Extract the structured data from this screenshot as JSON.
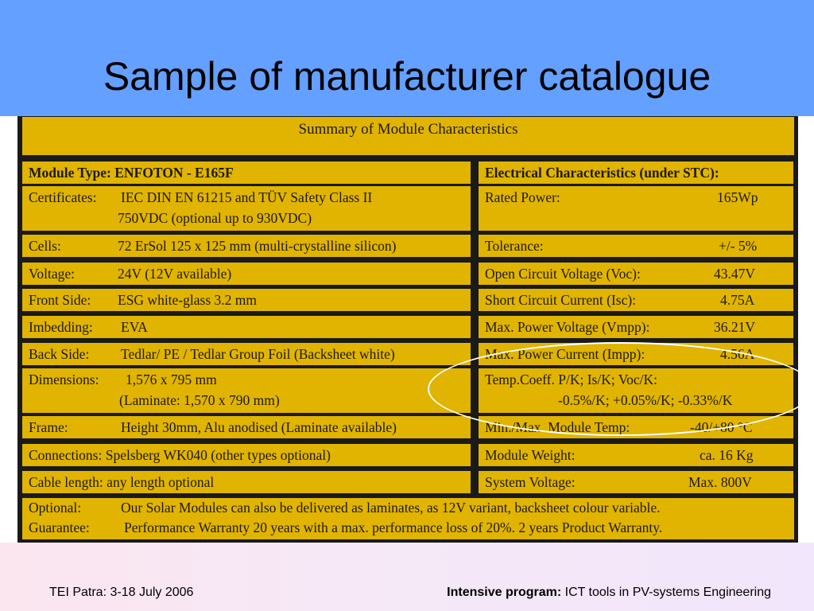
{
  "slide": {
    "title": "Sample of manufacturer catalogue"
  },
  "table": {
    "header": "Summary of Module Characteristics",
    "left": {
      "heading": "Module Type: ENFOTON - E165F",
      "certificates_label": "Certificates:",
      "certificates_line1": "IEC DIN EN 61215 and TÜV Safety Class II",
      "certificates_line2": "750VDC (optional up to 930VDC)",
      "cells_label": "Cells:",
      "cells_value": "72 ErSol 125 x 125 mm (multi-crystalline silicon)",
      "voltage_label": "Voltage:",
      "voltage_value": "24V (12V available)",
      "front_label": "Front Side:",
      "front_value": "ESG white-glass 3.2 mm",
      "imbedding_label": "Imbedding:",
      "imbedding_value": "EVA",
      "back_label": "Back Side:",
      "back_value": "Tedlar/ PE / Tedlar Group Foil (Backsheet white)",
      "dimensions_label": "Dimensions:",
      "dimensions_line1": "1,576 x 795 mm",
      "dimensions_line2": "(Laminate: 1,570 x 790 mm)",
      "frame_label": "Frame:",
      "frame_value": "Height 30mm, Alu anodised (Laminate available)",
      "connections": "Connections: Spelsberg WK040 (other types optional)",
      "cable": "Cable length: any length optional"
    },
    "right": {
      "heading": "Electrical Characteristics (under STC):",
      "rated_label": "Rated Power:",
      "rated_value": "165Wp",
      "tolerance_label": "Tolerance:",
      "tolerance_value": "+/- 5%",
      "voc_label": "Open Circuit Voltage (Voc):",
      "voc_value": "43.47V",
      "isc_label": "Short Circuit Current (Isc):",
      "isc_value": "4.75A",
      "vmpp_label": "Max. Power Voltage (Vmpp):",
      "vmpp_value": "36.21V",
      "impp_label": "Max. Power Current (Impp):",
      "impp_value": "4.56A",
      "temp_label": "Temp.Coeff. P/K; Is/K; Voc/K:",
      "temp_value": "-0.5%/K; +0.05%/K; -0.33%/K",
      "module_temp_label": "Min./Max. Module Temp:",
      "module_temp_value": "-40/+80 °C",
      "weight_label": "Module Weight:",
      "weight_value": "ca. 16 Kg",
      "system_label": "System Voltage:",
      "system_value": "Max. 800V"
    },
    "bottom": {
      "optional_label": "Optional:",
      "optional_value": "Our Solar Modules can also be delivered as laminates, as 12V variant, backsheet colour variable.",
      "guarantee_label": "Guarantee:",
      "guarantee_value": "Performance Warranty 20 years with a max. performance loss of 20%. 2 years Product Warranty."
    }
  },
  "footer": {
    "left": "TEI Patra: 3-18 July 2006",
    "right_bold": "Intensive program:",
    "right_text": "ICT tools in PV-systems Engineering"
  },
  "colors": {
    "title_band": "#63a0ff",
    "cell": "#e0b400",
    "highlight_ellipse": "#ffffff"
  }
}
